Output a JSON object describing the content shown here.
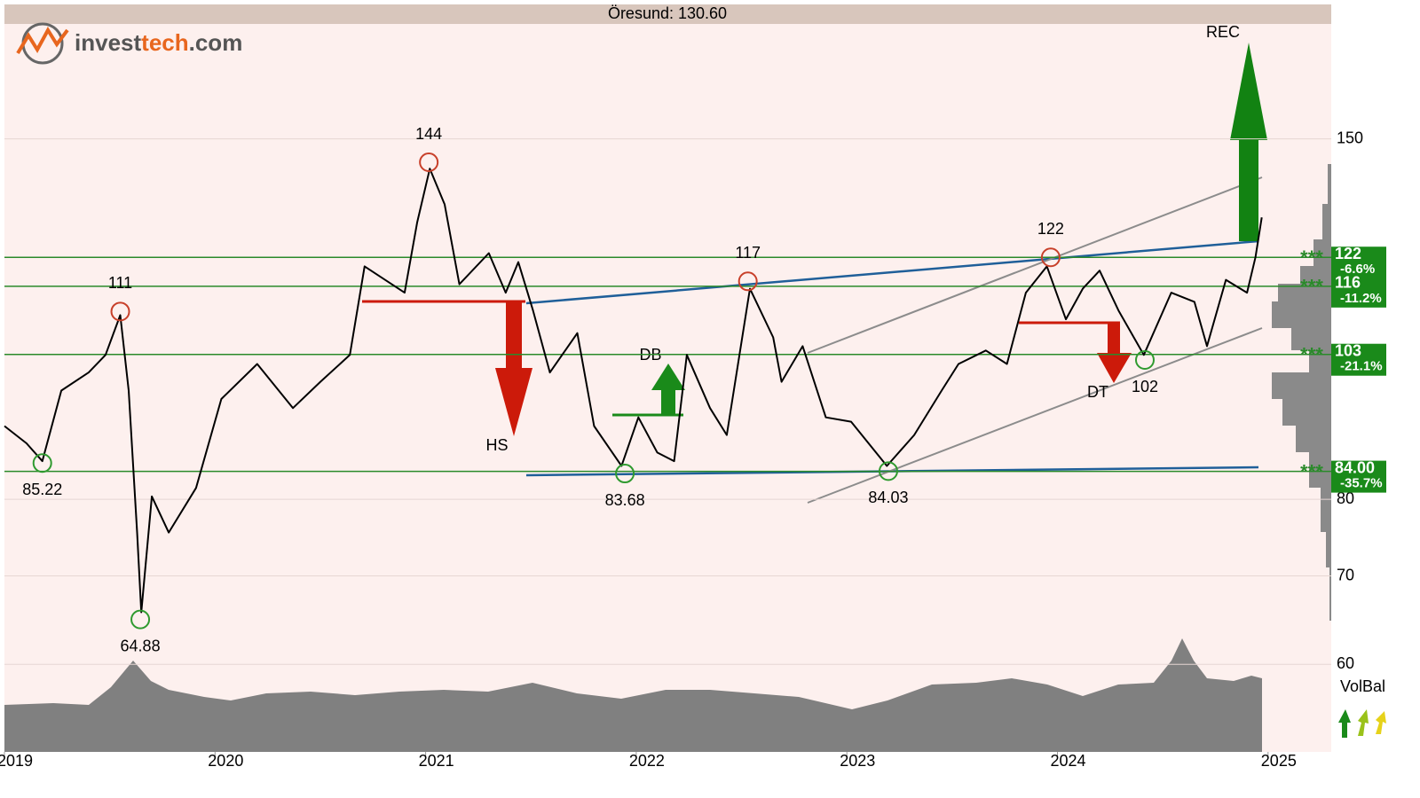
{
  "chart_data": {
    "type": "line",
    "title": "Öresund: 130.60",
    "logo": {
      "part1": "invest",
      "part2": "tech",
      "part3": ".com"
    },
    "log_scale": true,
    "grid": true,
    "color": "#000000",
    "xlim": [
      2019,
      2025.3
    ],
    "xticks": [
      2019,
      2020,
      2021,
      2022,
      2023,
      2024,
      2025
    ],
    "ylim": [
      51.5,
      183
    ],
    "yticks": [
      60,
      70,
      80,
      150
    ],
    "x": [
      2019.0,
      2019.105,
      2019.18,
      2019.27,
      2019.4,
      2019.48,
      2019.55,
      2019.59,
      2019.63,
      2019.65,
      2019.7,
      2019.78,
      2019.91,
      2020.03,
      2020.2,
      2020.37,
      2020.5,
      2020.64,
      2020.71,
      2020.9,
      2020.96,
      2021.02,
      2021.09,
      2021.16,
      2021.3,
      2021.38,
      2021.44,
      2021.51,
      2021.59,
      2021.72,
      2021.8,
      2021.93,
      2022.01,
      2022.1,
      2022.18,
      2022.24,
      2022.35,
      2022.43,
      2022.54,
      2022.65,
      2022.69,
      2022.79,
      2022.9,
      2023.02,
      2023.19,
      2023.32,
      2023.45,
      2023.53,
      2023.66,
      2023.76,
      2023.85,
      2023.95,
      2024.04,
      2024.12,
      2024.2,
      2024.29,
      2024.41,
      2024.54,
      2024.65,
      2024.71,
      2024.8,
      2024.9,
      2024.94,
      2024.97
    ],
    "values": [
      90.9,
      88.2,
      85.5,
      96.7,
      99.8,
      102.9,
      110.3,
      96.7,
      75.5,
      65.7,
      80.4,
      75.5,
      81.6,
      95.3,
      101.3,
      93.8,
      98.2,
      102.9,
      120.1,
      114.7,
      129.7,
      142.4,
      133.8,
      116.4,
      122.9,
      114.7,
      121.0,
      111.2,
      99.8,
      106.9,
      90.9,
      84.8,
      92.3,
      86.8,
      85.5,
      102.9,
      93.8,
      89.5,
      115.5,
      106.1,
      98.2,
      104.5,
      92.3,
      91.6,
      84.8,
      89.5,
      96.7,
      101.3,
      103.7,
      101.3,
      114.7,
      120.1,
      109.5,
      115.5,
      119.2,
      111.2,
      102.9,
      114.7,
      112.9,
      104.5,
      117.3,
      114.7,
      122.0,
      130.8
    ],
    "extremes": [
      {
        "x": 2019.55,
        "value": 111,
        "kind": "top"
      },
      {
        "x": 2019.18,
        "value": 85.22,
        "kind": "bottom"
      },
      {
        "x": 2019.645,
        "value": 64.88,
        "kind": "bottom"
      },
      {
        "x": 2021.015,
        "value": 144,
        "kind": "top"
      },
      {
        "x": 2021.946,
        "value": 83.68,
        "kind": "bottom"
      },
      {
        "x": 2022.53,
        "value": 117,
        "kind": "top"
      },
      {
        "x": 2023.197,
        "value": 84.03,
        "kind": "bottom"
      },
      {
        "x": 2023.968,
        "value": 122,
        "kind": "top"
      },
      {
        "x": 2024.415,
        "value": 102,
        "kind": "bottom"
      }
    ],
    "extreme_colors": {
      "top": "#c8402a",
      "bottom": "#2f9a2f"
    },
    "level_marker": "***",
    "level_color": "#2a8a2a",
    "levels": [
      {
        "value": 122,
        "change": "-6.6%"
      },
      {
        "value": 116,
        "change": "-11.2%"
      },
      {
        "value": 103,
        "change": "-21.1%"
      },
      {
        "value": {
          "value": 84,
          "label": "84.00"
        },
        "change": "-35.7%"
      }
    ],
    "patterns": [
      {
        "label": "HS"
      },
      {
        "label": "DB"
      },
      {
        "label": "DT"
      },
      {
        "label": "REC"
      }
    ],
    "indicator_label": "VolBal"
  }
}
